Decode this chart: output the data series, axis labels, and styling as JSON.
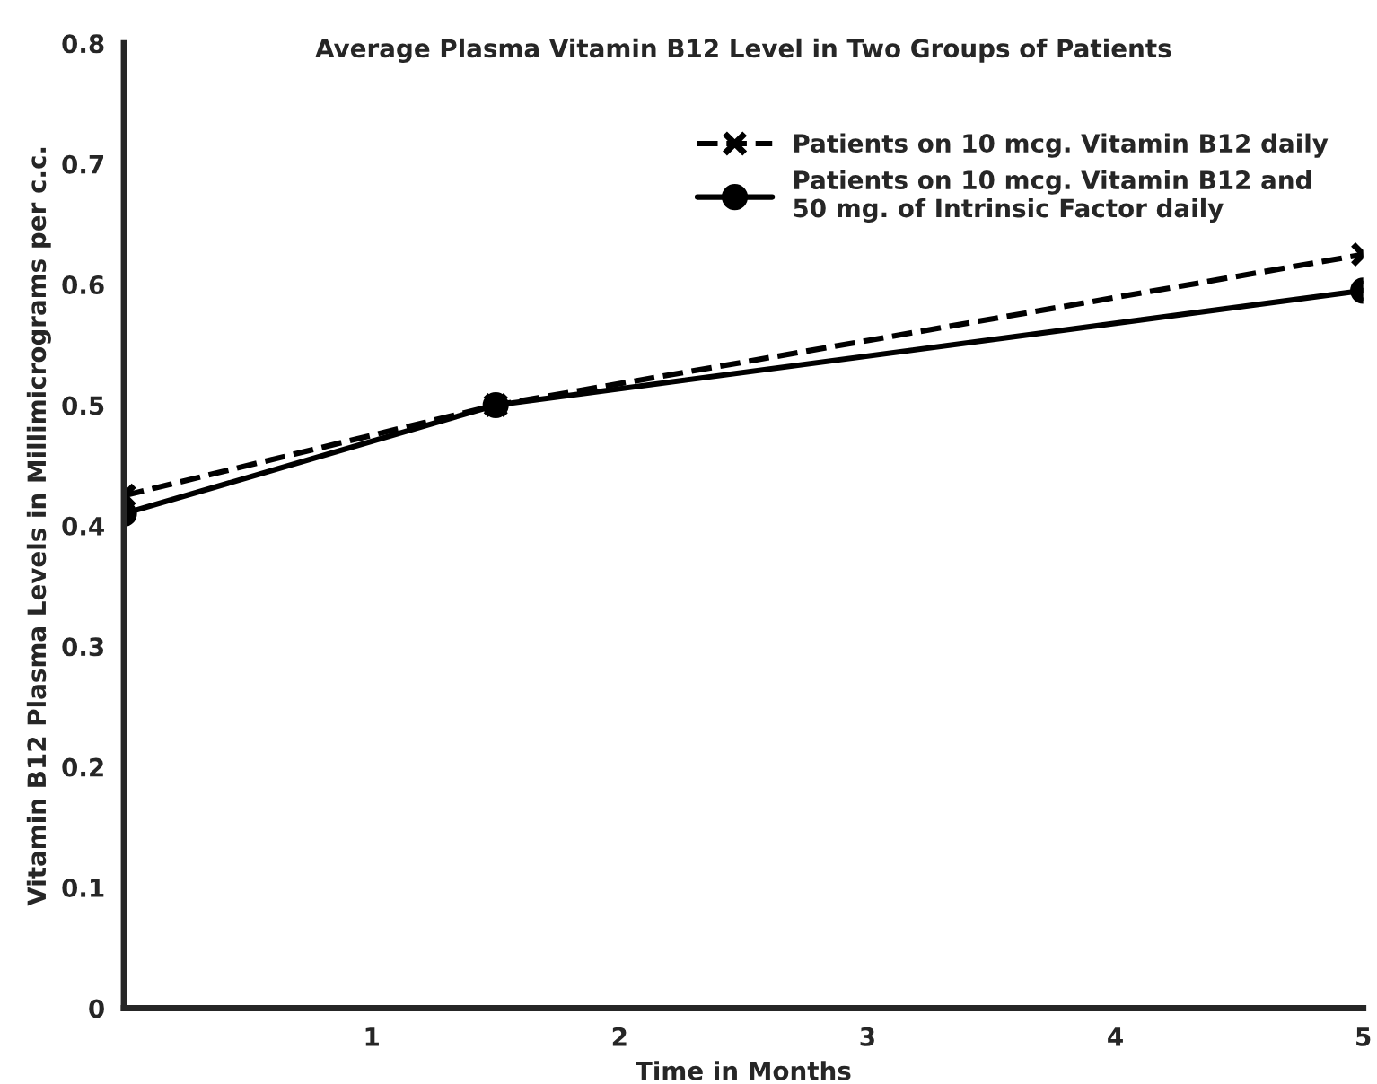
{
  "chart_data": {
    "type": "line",
    "title": "Average Plasma Vitamin B12 Level in Two Groups of Patients",
    "xlabel": "Time in Months",
    "ylabel": "Vitamin B12 Plasma Levels in Millimicrograms per c.c.",
    "xlim": [
      0,
      5
    ],
    "xticks": [
      1,
      2,
      3,
      4,
      5
    ],
    "ylim": [
      0,
      0.8
    ],
    "yticks": [
      0,
      0.1,
      0.2,
      0.3,
      0.4,
      0.5,
      0.6,
      0.7,
      0.8
    ],
    "grid": false,
    "legend": "top right",
    "series": [
      {
        "name": "Patients on 10 mcg. Vitamin B12 daily",
        "color": "#000000",
        "x": [
          0,
          1.5,
          5
        ],
        "values": [
          0.425,
          0.5,
          0.625
        ],
        "marker": "cross",
        "line_style": "dashed"
      },
      {
        "name": "Patients on 10 mcg. Vitamin B12 and\n50 mg. of Intrinsic Factor daily",
        "color": "#000000",
        "x": [
          0,
          1.5,
          5
        ],
        "values": [
          0.41,
          0.5,
          0.595
        ],
        "marker": "circle",
        "line_style": "solid"
      }
    ]
  }
}
